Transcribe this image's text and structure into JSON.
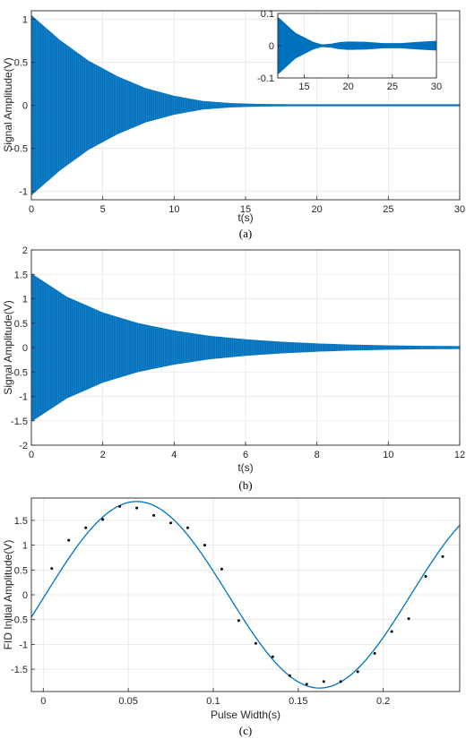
{
  "chart_data": [
    {
      "type": "area",
      "caption": "(a)",
      "xlabel": "t(s)",
      "ylabel": "Signal Amplitude(V)",
      "xlim": [
        0,
        30
      ],
      "ylim": [
        -1.1,
        1.1
      ],
      "xticks": [
        "0",
        "5",
        "10",
        "15",
        "20",
        "25",
        "30"
      ],
      "yticks": [
        "-1",
        "-0.5",
        "0",
        "0.5",
        "1"
      ],
      "grid": true,
      "color": "#0072bd",
      "series": [
        {
          "x": [
            0,
            2,
            4,
            6,
            8,
            10,
            12,
            14,
            16,
            18,
            20,
            22,
            24,
            26,
            28,
            30
          ],
          "upper": [
            1.05,
            0.76,
            0.52,
            0.34,
            0.2,
            0.11,
            0.05,
            0.025,
            0.015,
            0.012,
            0.012,
            0.012,
            0.012,
            0.012,
            0.012,
            0.012
          ],
          "lower": [
            -1.05,
            -0.76,
            -0.52,
            -0.34,
            -0.2,
            -0.11,
            -0.05,
            -0.025,
            -0.015,
            -0.012,
            -0.012,
            -0.012,
            -0.012,
            -0.012,
            -0.012,
            -0.012
          ]
        }
      ],
      "inset": {
        "xlim": [
          12,
          30
        ],
        "ylim": [
          -0.1,
          0.1
        ],
        "xticks": [
          "15",
          "20",
          "25",
          "30"
        ],
        "yticks": [
          "-0.1",
          "0",
          "0.1"
        ],
        "x": [
          12,
          14,
          16,
          17,
          18,
          19,
          20,
          22,
          24,
          26,
          28,
          30
        ],
        "upper": [
          0.09,
          0.04,
          0.012,
          0.004,
          0.006,
          0.011,
          0.013,
          0.012,
          0.008,
          0.008,
          0.012,
          0.015
        ],
        "lower": [
          -0.09,
          -0.04,
          -0.012,
          -0.004,
          -0.006,
          -0.011,
          -0.013,
          -0.012,
          -0.008,
          -0.008,
          -0.012,
          -0.015
        ]
      }
    },
    {
      "type": "area",
      "caption": "(b)",
      "xlabel": "t(s)",
      "ylabel": "Signal Amplitude(V)",
      "xlim": [
        0,
        12
      ],
      "ylim": [
        -2,
        2
      ],
      "xticks": [
        "0",
        "2",
        "4",
        "6",
        "8",
        "10",
        "12"
      ],
      "yticks": [
        "-2",
        "-1.5",
        "-1",
        "-0.5",
        "0",
        "0.5",
        "1",
        "1.5",
        "2"
      ],
      "grid": true,
      "color": "#0072bd",
      "series": [
        {
          "x": [
            0,
            1,
            2,
            3,
            4,
            5,
            6,
            7,
            8,
            9,
            10,
            11,
            12
          ],
          "upper": [
            1.52,
            1.04,
            0.72,
            0.5,
            0.35,
            0.24,
            0.17,
            0.12,
            0.085,
            0.06,
            0.045,
            0.035,
            0.03
          ],
          "lower": [
            -1.52,
            -1.04,
            -0.72,
            -0.5,
            -0.35,
            -0.24,
            -0.17,
            -0.12,
            -0.085,
            -0.06,
            -0.045,
            -0.035,
            -0.03
          ]
        }
      ]
    },
    {
      "type": "scatter",
      "caption": "(c)",
      "xlabel": "Pulse Width(s)",
      "ylabel": "FID Initial Amplitude(V)",
      "xlim": [
        -0.007,
        0.245
      ],
      "ylim": [
        -1.95,
        1.95
      ],
      "xticks": [
        "0",
        "0.05",
        "0.1",
        "0.15",
        "0.2"
      ],
      "yticks": [
        "-1.5",
        "-1",
        "-0.5",
        "0",
        "0.5",
        "1",
        "1.5"
      ],
      "grid": true,
      "color": "#0072bd",
      "points": {
        "x": [
          0.005,
          0.015,
          0.025,
          0.035,
          0.045,
          0.055,
          0.065,
          0.075,
          0.085,
          0.095,
          0.105,
          0.115,
          0.125,
          0.135,
          0.145,
          0.155,
          0.165,
          0.175,
          0.185,
          0.195,
          0.205,
          0.215,
          0.225,
          0.235
        ],
        "y": [
          0.53,
          1.1,
          1.35,
          1.52,
          1.78,
          1.75,
          1.6,
          1.45,
          1.35,
          1.0,
          0.52,
          -0.52,
          -0.98,
          -1.25,
          -1.63,
          -1.8,
          -1.75,
          -1.75,
          -1.55,
          -1.18,
          -0.74,
          -0.48,
          0.37,
          0.77
        ]
      },
      "fit": {
        "amplitude": 1.88,
        "period": 0.215,
        "peak_x": 0.055
      }
    }
  ]
}
